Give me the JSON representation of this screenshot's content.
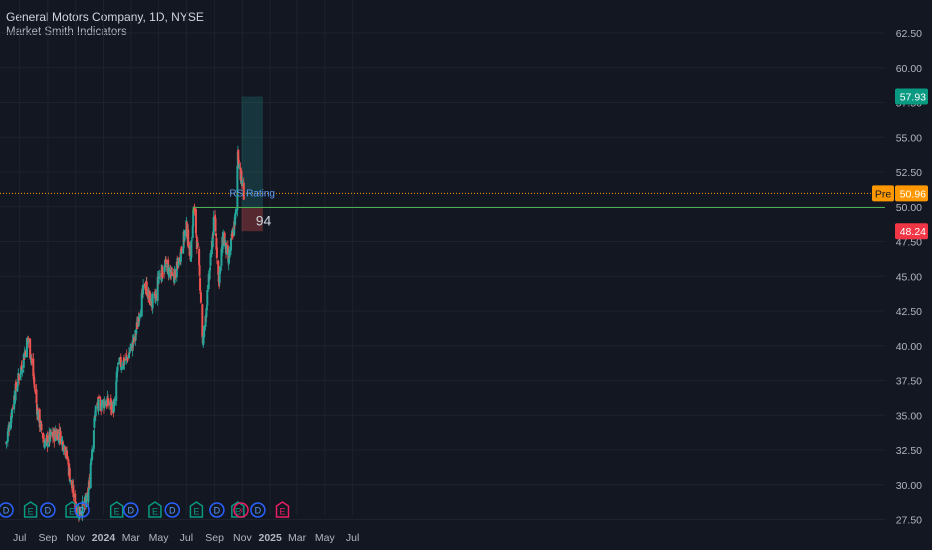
{
  "header": {
    "title": "General Motors Company, 1D, NYSE",
    "indicator": "Market Smith Indicators"
  },
  "colors": {
    "background": "#131722",
    "grid": "#1e222d",
    "up": "#26a69a",
    "down": "#ef5350",
    "price_line": "#ff9800",
    "event_dividend": "#2962ff",
    "event_earnings": "#089981",
    "event_earnings_upcoming": "#e91e63",
    "rs_line": "#4caf50"
  },
  "chart_data": {
    "type": "candlestick",
    "symbol": "GM",
    "interval": "1D",
    "exchange": "NYSE",
    "x_tick_labels": [
      "Jul",
      "Sep",
      "Nov",
      "2024",
      "Mar",
      "May",
      "Jul",
      "Sep",
      "Nov",
      "2025",
      "Mar",
      "May",
      "Jul"
    ],
    "y_tick_labels": [
      "62.50",
      "60.00",
      "57.50",
      "55.00",
      "52.50",
      "50.00",
      "47.50",
      "45.00",
      "42.50",
      "40.00",
      "37.50",
      "35.00",
      "32.50",
      "30.00",
      "27.50"
    ],
    "ylim": [
      27.2,
      63.8
    ],
    "price_path": [
      [
        "2023-06-01",
        33.0
      ],
      [
        "2023-06-20",
        36.5
      ],
      [
        "2023-07-05",
        38.5
      ],
      [
        "2023-07-19",
        40.5
      ],
      [
        "2023-07-27",
        39.0
      ],
      [
        "2023-08-10",
        35.0
      ],
      [
        "2023-08-25",
        33.0
      ],
      [
        "2023-09-10",
        33.5
      ],
      [
        "2023-09-25",
        33.8
      ],
      [
        "2023-10-10",
        32.5
      ],
      [
        "2023-10-20",
        30.5
      ],
      [
        "2023-11-01",
        28.5
      ],
      [
        "2023-11-10",
        28.0
      ],
      [
        "2023-11-28",
        29.0
      ],
      [
        "2023-12-05",
        32.0
      ],
      [
        "2023-12-15",
        35.5
      ],
      [
        "2024-01-05",
        36.0
      ],
      [
        "2024-01-25",
        35.5
      ],
      [
        "2024-02-01",
        38.5
      ],
      [
        "2024-02-20",
        39.0
      ],
      [
        "2024-03-10",
        40.5
      ],
      [
        "2024-03-20",
        42.5
      ],
      [
        "2024-04-01",
        44.5
      ],
      [
        "2024-04-15",
        43.0
      ],
      [
        "2024-04-25",
        43.5
      ],
      [
        "2024-05-01",
        45.0
      ],
      [
        "2024-05-20",
        45.8
      ],
      [
        "2024-05-31",
        44.8
      ],
      [
        "2024-06-10",
        45.5
      ],
      [
        "2024-06-20",
        47.0
      ],
      [
        "2024-07-01",
        48.5
      ],
      [
        "2024-07-10",
        46.5
      ],
      [
        "2024-07-17",
        50.0
      ],
      [
        "2024-07-24",
        47.5
      ],
      [
        "2024-08-01",
        44.0
      ],
      [
        "2024-08-06",
        40.0
      ],
      [
        "2024-08-20",
        45.0
      ],
      [
        "2024-09-01",
        49.5
      ],
      [
        "2024-09-10",
        44.5
      ],
      [
        "2024-09-20",
        48.0
      ],
      [
        "2024-10-01",
        46.0
      ],
      [
        "2024-10-10",
        48.0
      ],
      [
        "2024-10-18",
        49.5
      ],
      [
        "2024-10-22",
        54.0
      ],
      [
        "2024-10-25",
        53.0
      ],
      [
        "2024-10-29",
        52.0
      ],
      [
        "2024-11-04",
        50.96
      ]
    ],
    "last_price": 50.96,
    "last_price_label": "50.96",
    "pre_label": "Pre",
    "position": {
      "entry": 49.95,
      "target": 57.93,
      "stop": 48.24,
      "target_label": "57.93",
      "stop_label": "48.24",
      "start": "2024-10-30",
      "end": "2024-12-16"
    },
    "rs_rating": {
      "label": "RS Rating",
      "value": "94"
    },
    "rs_line": {
      "value": 49.95,
      "start": "2024-07-16"
    },
    "events": [
      {
        "date": "2023-06-01",
        "type": "D"
      },
      {
        "date": "2023-07-25",
        "type": "E"
      },
      {
        "date": "2023-09-01",
        "type": "D"
      },
      {
        "date": "2023-10-24",
        "type": "E"
      },
      {
        "date": "2023-11-15",
        "type": "D"
      },
      {
        "date": "2024-01-30",
        "type": "E"
      },
      {
        "date": "2024-03-01",
        "type": "D"
      },
      {
        "date": "2024-04-23",
        "type": "E"
      },
      {
        "date": "2024-05-31",
        "type": "D"
      },
      {
        "date": "2024-07-23",
        "type": "E"
      },
      {
        "date": "2024-09-06",
        "type": "D"
      },
      {
        "date": "2024-10-22",
        "type": "E"
      },
      {
        "date": "2024-10-29",
        "type": "split"
      },
      {
        "date": "2024-12-05",
        "type": "D"
      },
      {
        "date": "2025-01-28",
        "type": "E"
      }
    ]
  }
}
